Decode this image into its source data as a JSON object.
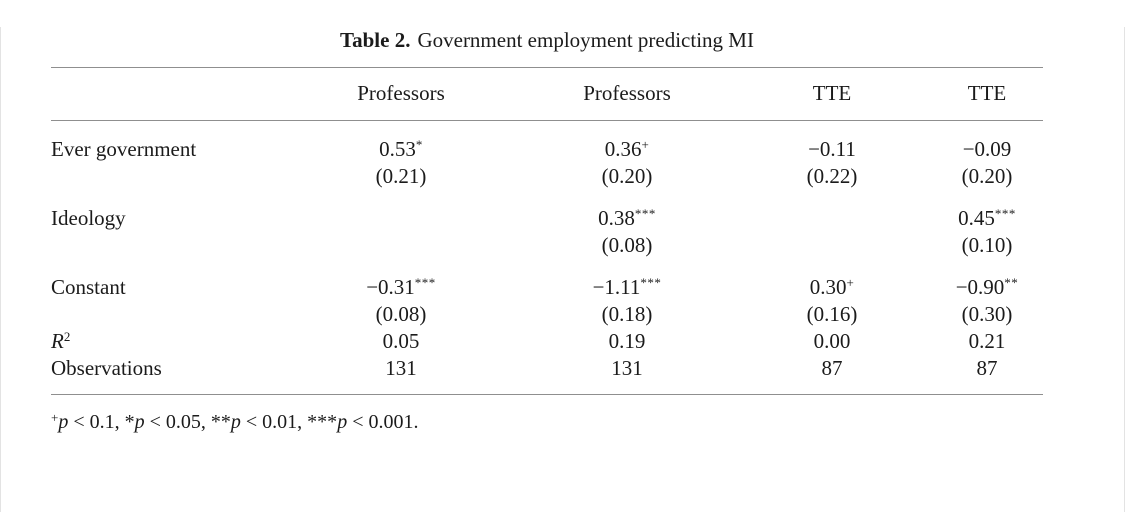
{
  "table": {
    "title": {
      "number": "Table 2.",
      "caption": "Government employment predicting MI"
    },
    "headers": [
      "Professors",
      "Professors",
      "TTE",
      "TTE"
    ],
    "rows": [
      {
        "label": "Ever government",
        "cells": [
          {
            "est": "0.53",
            "sig": "*",
            "se": "(0.21)"
          },
          {
            "est": "0.36",
            "sig": "+",
            "se": "(0.20)"
          },
          {
            "est": "−0.11",
            "sig": "",
            "se": "(0.22)"
          },
          {
            "est": "−0.09",
            "sig": "",
            "se": "(0.20)"
          }
        ]
      },
      {
        "label": "Ideology",
        "cells": [
          {
            "est": "",
            "sig": "",
            "se": ""
          },
          {
            "est": "0.38",
            "sig": "***",
            "se": "(0.08)"
          },
          {
            "est": "",
            "sig": "",
            "se": ""
          },
          {
            "est": "0.45",
            "sig": "***",
            "se": "(0.10)"
          }
        ]
      },
      {
        "label": "Constant",
        "cells": [
          {
            "est": "−0.31",
            "sig": "***",
            "se": "(0.08)"
          },
          {
            "est": "−1.11",
            "sig": "***",
            "se": "(0.18)"
          },
          {
            "est": "0.30",
            "sig": "+",
            "se": "(0.16)"
          },
          {
            "est": "−0.90",
            "sig": "**",
            "se": "(0.30)"
          }
        ]
      }
    ],
    "stats": [
      {
        "label_main": "R",
        "label_sup": "2",
        "values": [
          "0.05",
          "0.19",
          "0.00",
          "0.21"
        ]
      },
      {
        "label_main": "Observations",
        "label_sup": "",
        "values": [
          "131",
          "131",
          "87",
          "87"
        ]
      }
    ],
    "footnote": {
      "segments": [
        {
          "v": "+"
        },
        {
          "v": "p"
        },
        {
          "v": " < 0.1, *"
        },
        {
          "v": "p"
        },
        {
          "v": " < 0.05, **"
        },
        {
          "v": "p"
        },
        {
          "v": " < 0.01, ***"
        },
        {
          "v": "p"
        },
        {
          "v": " < 0.001."
        }
      ]
    }
  }
}
